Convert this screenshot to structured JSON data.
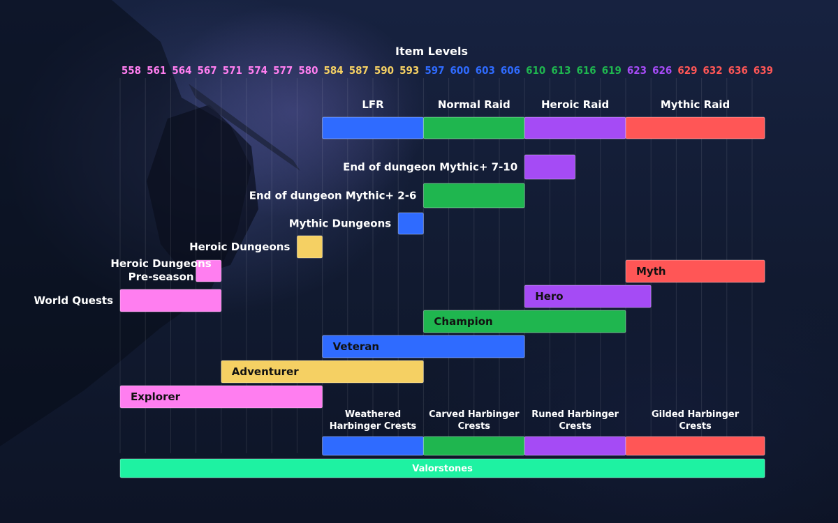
{
  "chart_data": {
    "type": "gantt",
    "title": "Item Levels",
    "levels": [
      558,
      561,
      564,
      567,
      571,
      574,
      577,
      580,
      584,
      587,
      590,
      593,
      597,
      600,
      603,
      606,
      610,
      613,
      616,
      619,
      623,
      626,
      629,
      632,
      636,
      639
    ],
    "tier_colors": {
      "pink": "#ff7ef0",
      "yellow": "#f5d063",
      "blue": "#2f6bff",
      "green": "#1fb64f",
      "purple": "#a54bf5",
      "red": "#ff5656",
      "teal": "#1ef2a2"
    },
    "tick_colors": [
      "pink",
      "pink",
      "pink",
      "pink",
      "pink",
      "pink",
      "pink",
      "pink",
      "yellow",
      "yellow",
      "yellow",
      "yellow",
      "blue",
      "blue",
      "blue",
      "blue",
      "green",
      "green",
      "green",
      "green",
      "purple",
      "purple",
      "red",
      "red",
      "red",
      "red"
    ],
    "raid_headers": [
      "LFR",
      "Normal Raid",
      "Heroic Raid",
      "Mythic Raid"
    ],
    "raid_bars": [
      {
        "from": 584,
        "to": 597,
        "color": "blue"
      },
      {
        "from": 597,
        "to": 610,
        "color": "green"
      },
      {
        "from": 610,
        "to": 623,
        "color": "purple"
      },
      {
        "from": 623,
        "to": 639,
        "color": "red"
      }
    ],
    "source_bars": [
      {
        "label": [
          "End of dungeon Mythic+ 7-10"
        ],
        "from": 610,
        "to": 616,
        "color": "purple"
      },
      {
        "label": [
          "End of dungeon Mythic+ 2-6"
        ],
        "from": 597,
        "to": 610,
        "color": "green"
      },
      {
        "label": [
          "Mythic Dungeons"
        ],
        "from": 593,
        "to": 597,
        "color": "blue"
      },
      {
        "label": [
          "Heroic Dungeons"
        ],
        "from": 580,
        "to": 584,
        "color": "yellow"
      },
      {
        "label": [
          "Heroic Dungeons",
          "Pre-season"
        ],
        "from": 567,
        "to": 571,
        "color": "pink"
      },
      {
        "label": [
          "World Quests"
        ],
        "from": 558,
        "to": 571,
        "color": "pink"
      }
    ],
    "track_bars": [
      {
        "label": "Myth",
        "from": 623,
        "to": 639,
        "color": "red"
      },
      {
        "label": "Hero",
        "from": 610,
        "to": 626,
        "color": "purple"
      },
      {
        "label": "Champion",
        "from": 597,
        "to": 623,
        "color": "green"
      },
      {
        "label": "Veteran",
        "from": 584,
        "to": 610,
        "color": "blue"
      },
      {
        "label": "Adventurer",
        "from": 571,
        "to": 597,
        "color": "yellow"
      },
      {
        "label": "Explorer",
        "from": 558,
        "to": 584,
        "color": "pink"
      }
    ],
    "crest_labels": [
      [
        "Weathered",
        "Harbinger Crests"
      ],
      [
        "Carved Harbinger",
        "Crests"
      ],
      [
        "Runed Harbinger",
        "Crests"
      ],
      [
        "Gilded Harbinger",
        "Crests"
      ]
    ],
    "crest_bars": [
      {
        "from": 584,
        "to": 597,
        "color": "blue"
      },
      {
        "from": 597,
        "to": 610,
        "color": "green"
      },
      {
        "from": 610,
        "to": 623,
        "color": "purple"
      },
      {
        "from": 623,
        "to": 639,
        "color": "red"
      }
    ],
    "valorstones": {
      "label": "Valorstones",
      "from": 558,
      "to": 639,
      "color": "teal"
    }
  }
}
